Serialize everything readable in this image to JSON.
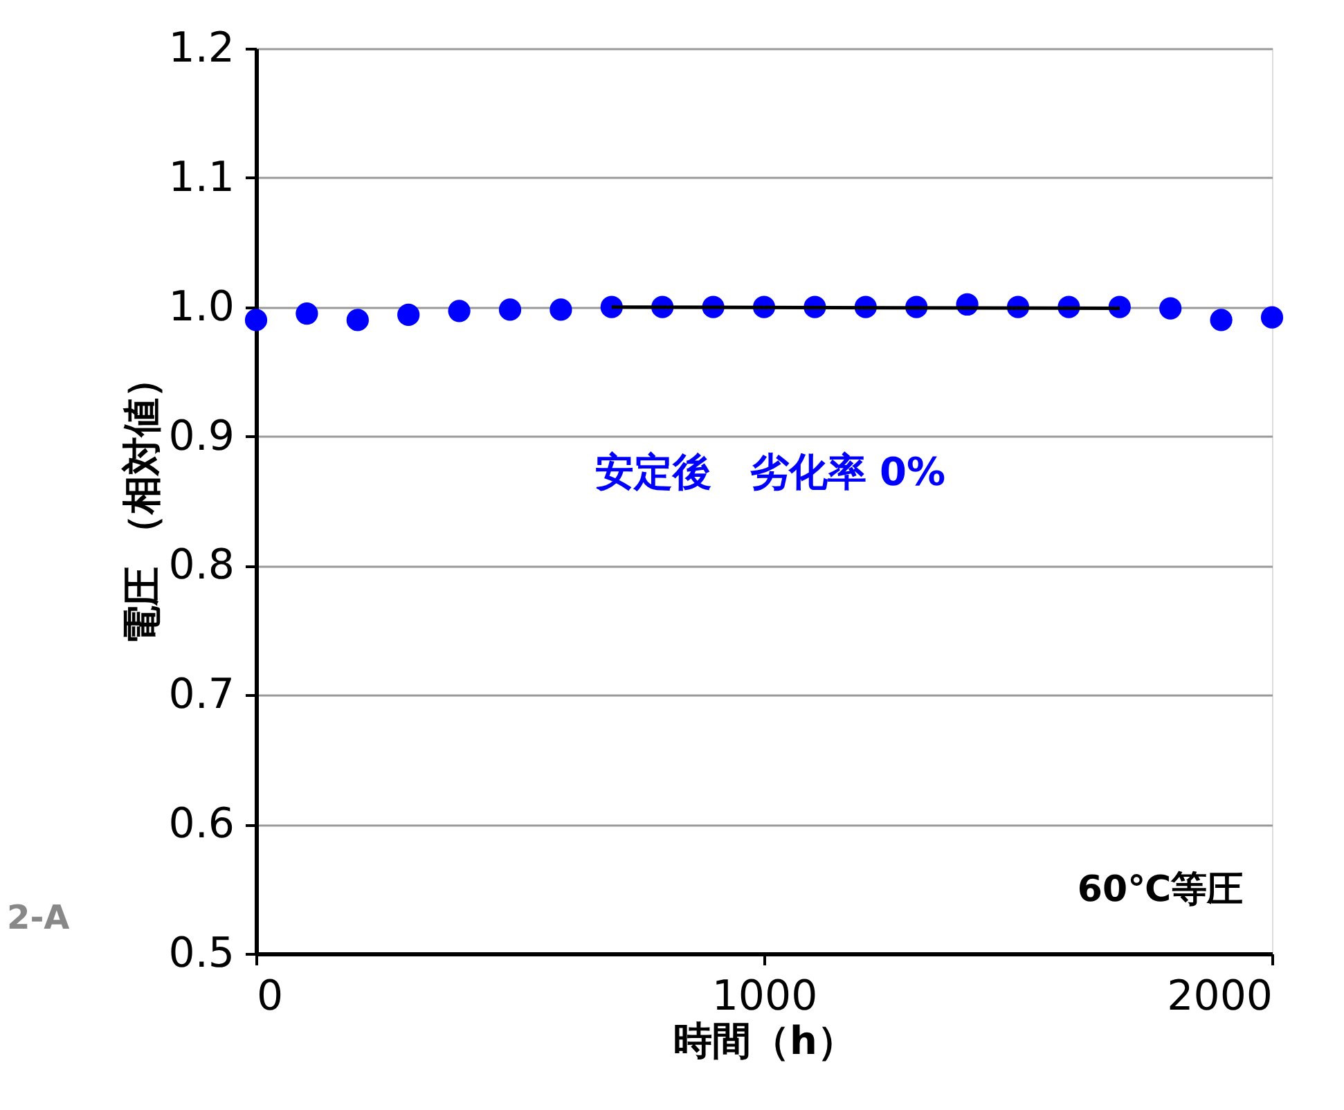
{
  "chart_data": {
    "type": "scatter",
    "xlabel": "時間（h）",
    "ylabel": "電圧 （相対値）",
    "x": [
      0,
      100,
      200,
      300,
      400,
      500,
      600,
      700,
      800,
      900,
      1000,
      1100,
      1200,
      1300,
      1400,
      1500,
      1600,
      1700,
      1800,
      1900,
      2000
    ],
    "series": [
      {
        "color": "#0000ff",
        "marker": "circle",
        "values": [
          0.99,
          0.995,
          0.99,
          0.994,
          0.997,
          0.998,
          0.998,
          1.0,
          1.0,
          1.0,
          1.0,
          1.0,
          1.0,
          1.0,
          1.002,
          1.0,
          1.0,
          1.0,
          0.999,
          0.99,
          0.992
        ]
      },
      {
        "type": "line",
        "color": "#000000",
        "x": [
          700,
          1700
        ],
        "values": [
          1.0,
          0.999
        ]
      }
    ],
    "xlim": [
      0,
      2000
    ],
    "xticks": [
      0,
      1000,
      2000
    ],
    "ylim": [
      0.5,
      1.2
    ],
    "yticks": [
      0.5,
      0.6,
      0.7,
      0.8,
      0.9,
      {
        "value": 1,
        "label": "1.0"
      },
      1.1,
      1.2
    ],
    "grid": "y",
    "annotations": [
      "安定後　劣化率 0%",
      "60℃等圧",
      "2-A"
    ]
  }
}
